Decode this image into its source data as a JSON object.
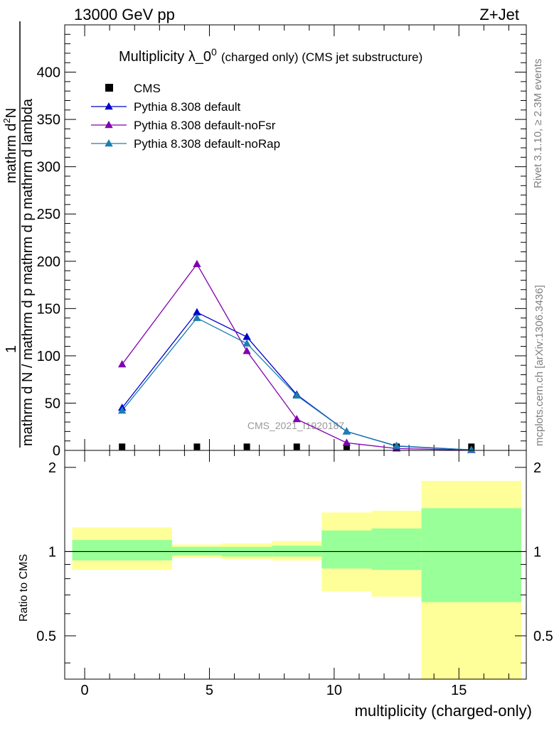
{
  "header": {
    "left": "13000 GeV pp",
    "right": "Z+Jet"
  },
  "side_labels": {
    "rivet": "Rivet 3.1.10, ≥ 2.3M events",
    "mcplots": "mcplots.cern.ch [arXiv:1306.3436]"
  },
  "chart_data": [
    {
      "type": "line",
      "title_main": "Multiplicity λ_0",
      "title_sup": "0",
      "title_rest": "(charged only) (CMS jet substructure)",
      "ylabel_line1": "mathrm d²N",
      "ylabel_line2": "1",
      "ylabel_line3": "mathrm d N / mathrm d p_mathrm d p_mathrm d lambda",
      "ylabel_den": "mathrm d N / mathrm d p_mathrm d p_mathrm d lambda",
      "ylabel_num_a": "mathrm d",
      "ylabel_num_b": "2",
      "ylabel_num_c": "N",
      "ylabel_den_a": "mathrm d N / mathrm d p",
      "ylabel_den_b": "mathrm d p",
      "ylabel_den_c": "mathrm d lambda",
      "ylabel_one": "1",
      "ylim": [
        0,
        450
      ],
      "xlim": [
        -0.8,
        17.7
      ],
      "y_ticks": [
        0,
        50,
        100,
        150,
        200,
        250,
        300,
        350,
        400
      ],
      "watermark": "CMS_2021_I1920187",
      "legend_position": "top-left",
      "series": [
        {
          "name": "CMS",
          "marker": "square",
          "color": "#000000",
          "x": [
            1.5,
            4.5,
            6.5,
            8.5,
            10.5,
            12.5,
            15.5
          ],
          "y": [
            0.5,
            0.5,
            0.5,
            0.5,
            0.5,
            0.5,
            0.5
          ]
        },
        {
          "name": "Pythia 8.308 default",
          "marker": "triangle",
          "color": "#0000cc",
          "x": [
            1.5,
            4.5,
            6.5,
            8.5,
            10.5,
            12.5,
            15.5
          ],
          "y": [
            45,
            146,
            120,
            59,
            20,
            4.5,
            0.5
          ]
        },
        {
          "name": "Pythia 8.308 default-noFsr",
          "marker": "triangle",
          "color": "#8000b0",
          "x": [
            1.5,
            4.5,
            6.5,
            8.5,
            10.5,
            12.5,
            15.5
          ],
          "y": [
            91,
            197,
            105,
            33,
            8,
            2,
            0.3
          ]
        },
        {
          "name": "Pythia 8.308 default-noRap",
          "marker": "triangle",
          "color": "#1a7fb0",
          "x": [
            1.5,
            4.5,
            6.5,
            8.5,
            10.5,
            12.5,
            15.5
          ],
          "y": [
            42,
            140,
            113,
            58,
            20,
            4.8,
            0.6
          ]
        }
      ]
    },
    {
      "type": "area",
      "ylabel": "Ratio to CMS",
      "xlabel": "multiplicity (charged-only)",
      "ylim": [
        0.35,
        2.3
      ],
      "xlim": [
        -0.8,
        17.7
      ],
      "y_tick_labels": [
        "0.5",
        "1",
        "2"
      ],
      "y_tick_values": [
        0.5,
        1,
        2
      ],
      "x_tick_labels": [
        "0",
        "5",
        "10",
        "15"
      ],
      "x_tick_values": [
        0,
        5,
        10,
        15
      ],
      "reference": 1,
      "bands": [
        {
          "x0": -0.5,
          "x1": 3.5,
          "outer": [
            0.86,
            1.22
          ],
          "inner": [
            0.93,
            1.1
          ]
        },
        {
          "x0": 3.5,
          "x1": 5.5,
          "outer": [
            0.95,
            1.06
          ],
          "inner": [
            0.97,
            1.04
          ]
        },
        {
          "x0": 5.5,
          "x1": 7.5,
          "outer": [
            0.94,
            1.07
          ],
          "inner": [
            0.96,
            1.04
          ]
        },
        {
          "x0": 7.5,
          "x1": 9.5,
          "outer": [
            0.93,
            1.09
          ],
          "inner": [
            0.96,
            1.05
          ]
        },
        {
          "x0": 9.5,
          "x1": 11.5,
          "outer": [
            0.72,
            1.38
          ],
          "inner": [
            0.87,
            1.19
          ]
        },
        {
          "x0": 11.5,
          "x1": 13.5,
          "outer": [
            0.69,
            1.4
          ],
          "inner": [
            0.86,
            1.21
          ]
        },
        {
          "x0": 13.5,
          "x1": 17.5,
          "outer": [
            0.35,
            1.79
          ],
          "inner": [
            0.66,
            1.43
          ]
        }
      ],
      "colors": {
        "outer": "#ffff99",
        "inner": "#99ff99"
      }
    }
  ]
}
